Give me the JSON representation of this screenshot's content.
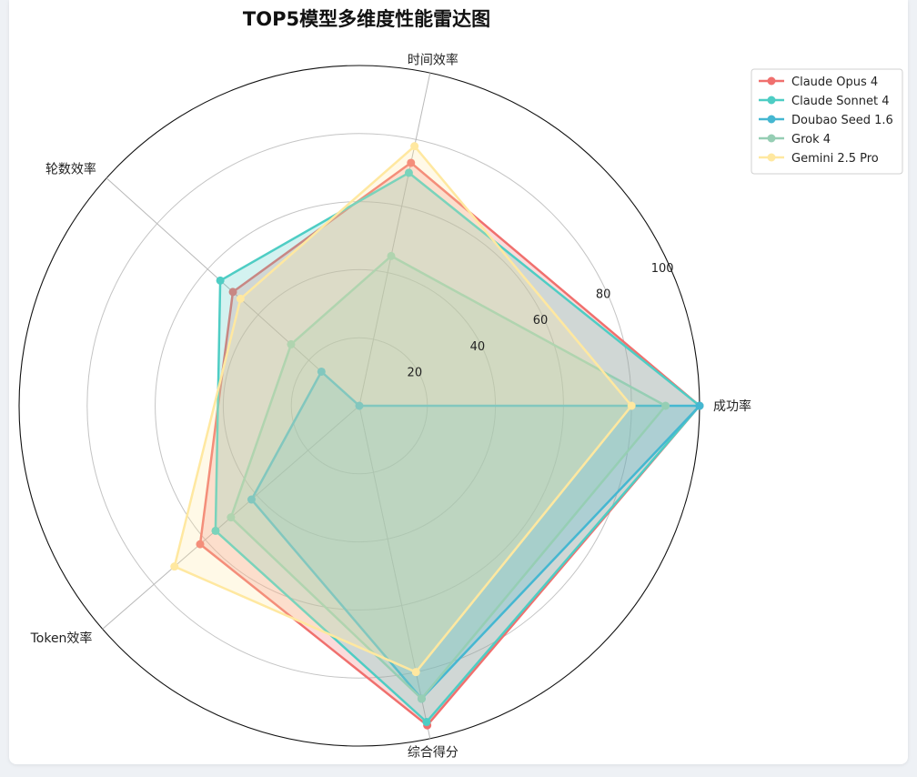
{
  "chart_data": {
    "type": "radar",
    "title": "TOP5模型多维度性能雷达图",
    "axes": [
      "成功率",
      "时间效率",
      "轮数效率",
      "Token效率",
      "综合得分"
    ],
    "rlim": [
      0,
      100
    ],
    "rticks": [
      20,
      40,
      60,
      80,
      100
    ],
    "grid": true,
    "legend_position": "top-right",
    "series": [
      {
        "name": "Claude Opus 4",
        "color": "#f0706e",
        "values": [
          100,
          73,
          50,
          62,
          96
        ]
      },
      {
        "name": "Claude Sonnet 4",
        "color": "#4ecdc4",
        "values": [
          100,
          70,
          55,
          56,
          95
        ]
      },
      {
        "name": "Doubao Seed 1.6",
        "color": "#45b7d1",
        "values": [
          100,
          0,
          15,
          42,
          88
        ]
      },
      {
        "name": "Grok 4",
        "color": "#96ceb4",
        "values": [
          90,
          45,
          27,
          50,
          88
        ]
      },
      {
        "name": "Gemini 2.5 Pro",
        "color": "#ffe8a0",
        "values": [
          80,
          78,
          47,
          72,
          80
        ]
      }
    ]
  }
}
